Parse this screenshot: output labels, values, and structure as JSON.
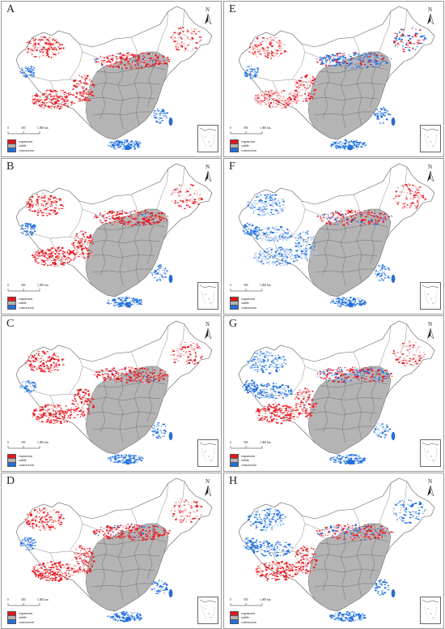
{
  "figure": {
    "panels": [
      {
        "letter": "A"
      },
      {
        "letter": "E"
      },
      {
        "letter": "B"
      },
      {
        "letter": "F"
      },
      {
        "letter": "C"
      },
      {
        "letter": "G"
      },
      {
        "letter": "D"
      },
      {
        "letter": "H"
      }
    ]
  },
  "legend": {
    "items": [
      {
        "label": "expansion",
        "color": "#e8141c"
      },
      {
        "label": "stable",
        "color": "#b4b4b4"
      },
      {
        "label": "contraction",
        "color": "#1f6fe0"
      }
    ]
  },
  "scale": {
    "ticks": [
      "0",
      "500",
      "1,000 km"
    ]
  },
  "north_arrow": {
    "label": "N",
    "icon": "north-arrow-icon"
  },
  "colors": {
    "boundary": "#5a5a5a",
    "stable_fill": "#b4b4b4",
    "expansion": "#e8141c",
    "contraction": "#1f6fe0",
    "light_expansion": "#f6b3b6",
    "light_contraction": "#a9c9f2"
  }
}
